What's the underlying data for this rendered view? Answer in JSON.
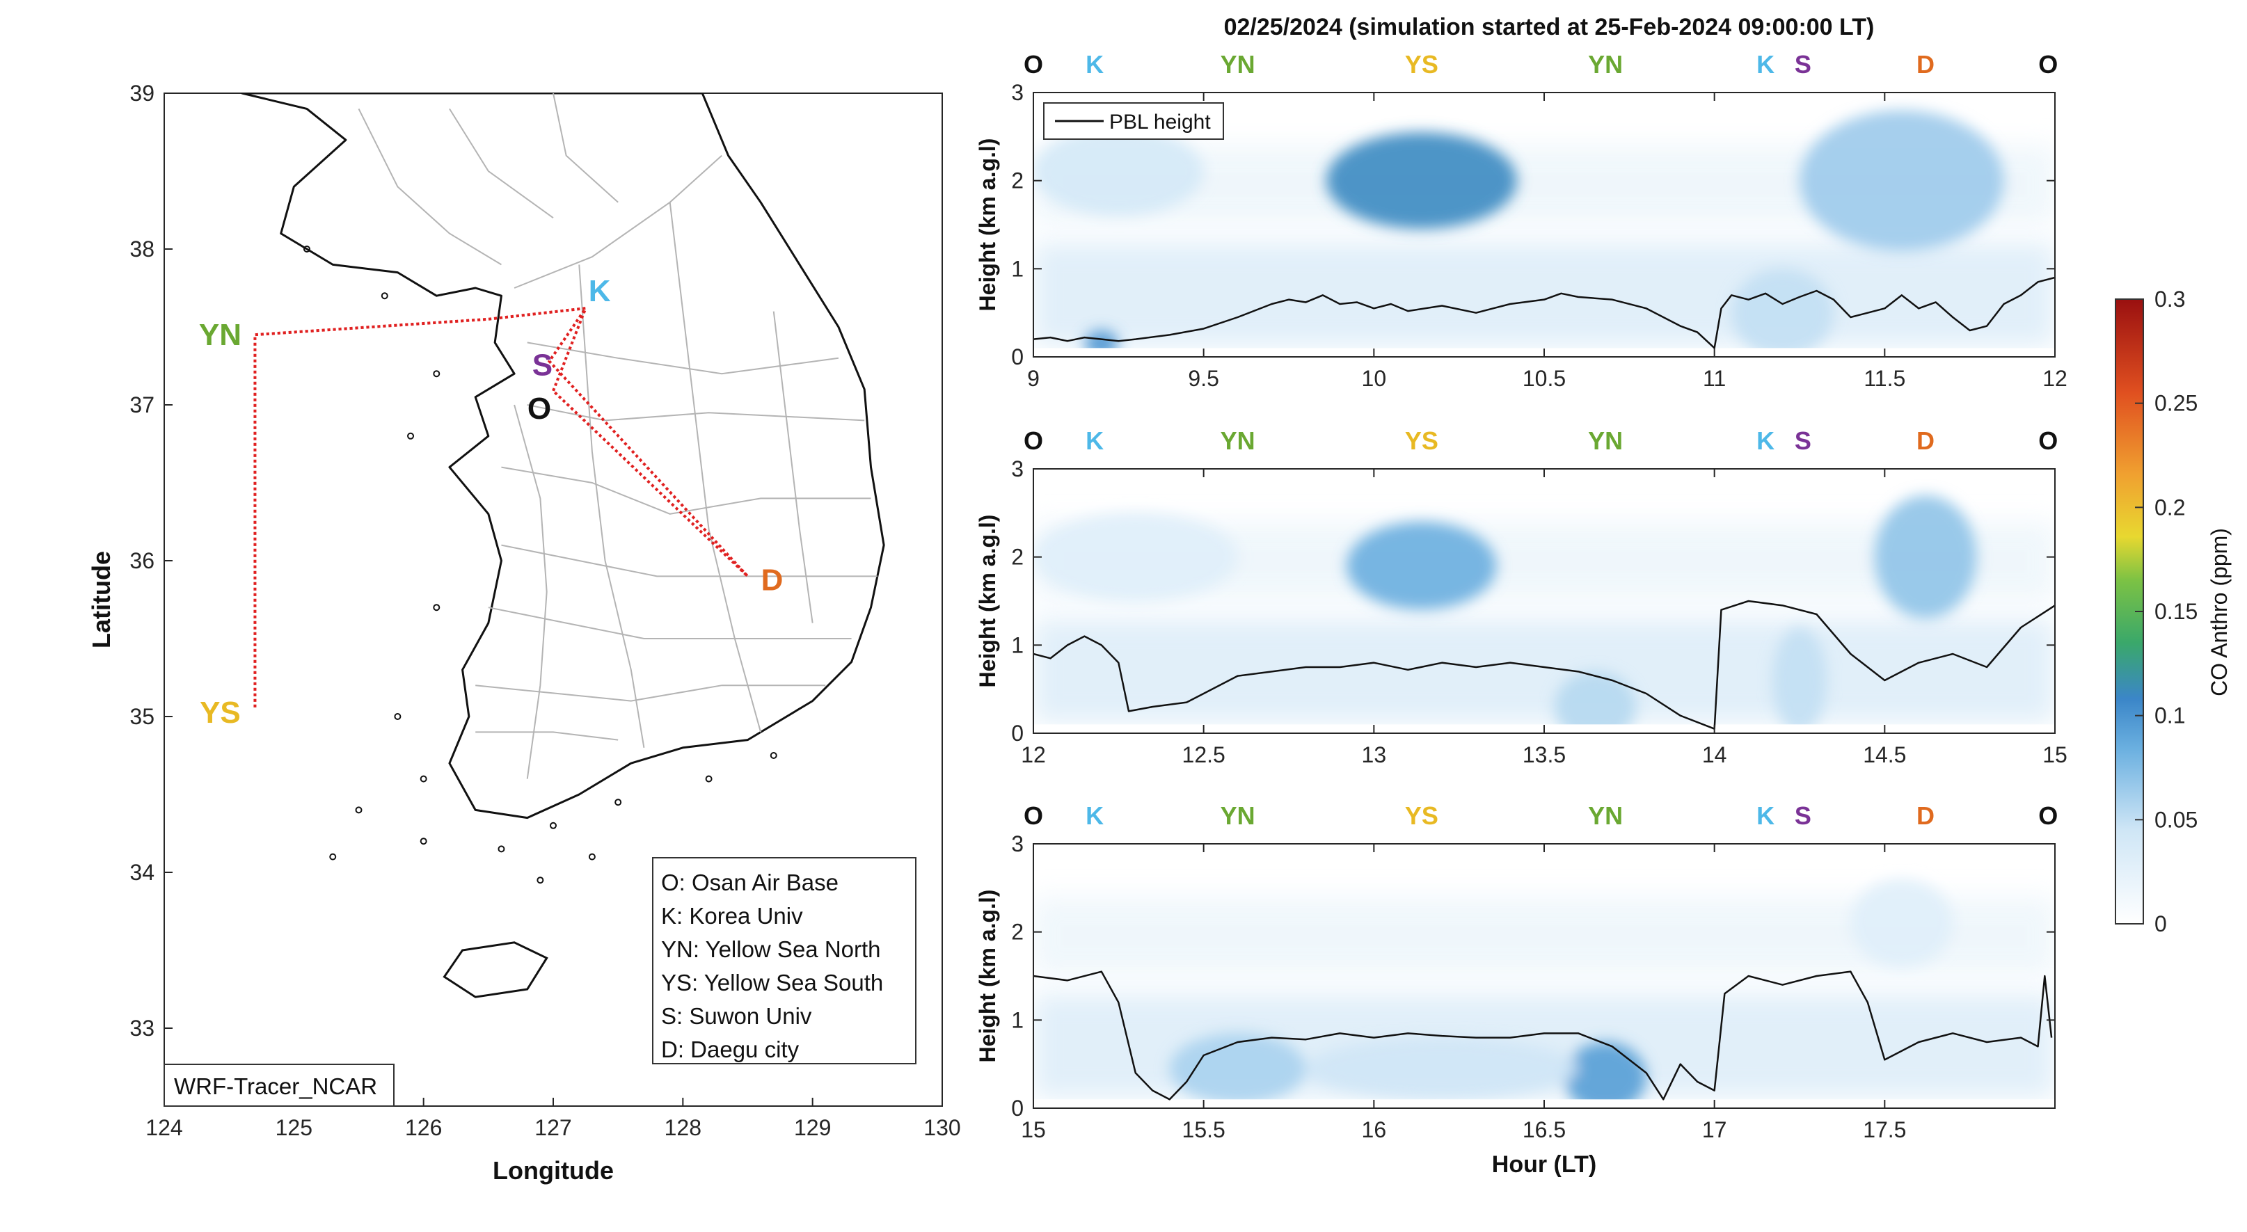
{
  "figure": {
    "title": "02/25/2024 (simulation started at 25-Feb-2024 09:00:00 LT)",
    "watermark_label": "WRF-Tracer_NCAR",
    "colors": {
      "O": "#111111",
      "K": "#4db8e8",
      "YN": "#6aa832",
      "YS": "#e8b923",
      "S": "#7a3296",
      "D": "#e06a1e",
      "path": "#e02020",
      "pbl": "#111111",
      "map_boundary": "#b4b4b4",
      "coast": "#111111"
    }
  },
  "chart_data": [
    {
      "type": "map",
      "xlabel": "Longitude",
      "ylabel": "Latitude",
      "xlim": [
        124,
        130
      ],
      "ylim": [
        32.5,
        39
      ],
      "xticks": [
        124,
        125,
        126,
        127,
        128,
        129,
        130
      ],
      "yticks": [
        33,
        34,
        35,
        36,
        37,
        38,
        39
      ],
      "sites": [
        {
          "code": "K",
          "lon": 127.25,
          "lat": 37.62
        },
        {
          "code": "S",
          "lon": 126.97,
          "lat": 37.28
        },
        {
          "code": "O",
          "lon": 127.0,
          "lat": 37.09
        },
        {
          "code": "D",
          "lon": 128.5,
          "lat": 35.9
        },
        {
          "code": "YN",
          "lon": 124.7,
          "lat": 37.45
        },
        {
          "code": "YS",
          "lon": 124.7,
          "lat": 35.05
        }
      ],
      "flight_path": [
        {
          "lon": 127.0,
          "lat": 37.09
        },
        {
          "lon": 127.25,
          "lat": 37.62
        },
        {
          "lon": 126.5,
          "lat": 37.55
        },
        {
          "lon": 124.7,
          "lat": 37.45
        },
        {
          "lon": 124.7,
          "lat": 35.05
        },
        {
          "lon": 124.7,
          "lat": 37.45
        },
        {
          "lon": 126.5,
          "lat": 37.55
        },
        {
          "lon": 127.25,
          "lat": 37.62
        },
        {
          "lon": 126.97,
          "lat": 37.28
        },
        {
          "lon": 128.5,
          "lat": 35.9
        },
        {
          "lon": 127.0,
          "lat": 37.09
        }
      ],
      "legend": [
        "O: Osan Air Base",
        "K: Korea Univ",
        "YN: Yellow Sea North",
        "YS: Yellow Sea South",
        "S: Suwon Univ",
        "D: Daegu city"
      ]
    },
    {
      "type": "heatmap",
      "ylabel": "Height (km a.g.l)",
      "xlabel": "",
      "xlim": [
        9,
        12
      ],
      "ylim": [
        0,
        3
      ],
      "xticks": [
        "9",
        "9.5",
        "10",
        "10.5",
        "11",
        "11.5",
        "12"
      ],
      "yticks": [
        "0",
        "1",
        "2",
        "3"
      ],
      "legend": "PBL height",
      "site_labels": [
        {
          "code": "O",
          "t": 9.0
        },
        {
          "code": "K",
          "t": 9.18
        },
        {
          "code": "YN",
          "t": 9.6
        },
        {
          "code": "YS",
          "t": 10.14
        },
        {
          "code": "YN",
          "t": 10.68
        },
        {
          "code": "K",
          "t": 11.15
        },
        {
          "code": "S",
          "t": 11.26
        },
        {
          "code": "D",
          "t": 11.62
        },
        {
          "code": "O",
          "t": 11.98
        }
      ],
      "pbl": [
        [
          9.0,
          0.2
        ],
        [
          9.05,
          0.22
        ],
        [
          9.1,
          0.18
        ],
        [
          9.15,
          0.22
        ],
        [
          9.2,
          0.2
        ],
        [
          9.25,
          0.18
        ],
        [
          9.3,
          0.2
        ],
        [
          9.4,
          0.25
        ],
        [
          9.5,
          0.32
        ],
        [
          9.6,
          0.45
        ],
        [
          9.7,
          0.6
        ],
        [
          9.75,
          0.65
        ],
        [
          9.8,
          0.62
        ],
        [
          9.85,
          0.7
        ],
        [
          9.9,
          0.6
        ],
        [
          9.95,
          0.62
        ],
        [
          10.0,
          0.55
        ],
        [
          10.05,
          0.6
        ],
        [
          10.1,
          0.52
        ],
        [
          10.2,
          0.58
        ],
        [
          10.3,
          0.5
        ],
        [
          10.35,
          0.55
        ],
        [
          10.4,
          0.6
        ],
        [
          10.5,
          0.65
        ],
        [
          10.55,
          0.72
        ],
        [
          10.6,
          0.68
        ],
        [
          10.7,
          0.65
        ],
        [
          10.8,
          0.55
        ],
        [
          10.9,
          0.35
        ],
        [
          10.95,
          0.28
        ],
        [
          11.0,
          0.1
        ],
        [
          11.02,
          0.55
        ],
        [
          11.05,
          0.7
        ],
        [
          11.1,
          0.65
        ],
        [
          11.15,
          0.72
        ],
        [
          11.2,
          0.6
        ],
        [
          11.25,
          0.68
        ],
        [
          11.3,
          0.75
        ],
        [
          11.35,
          0.65
        ],
        [
          11.4,
          0.45
        ],
        [
          11.45,
          0.5
        ],
        [
          11.5,
          0.55
        ],
        [
          11.55,
          0.7
        ],
        [
          11.6,
          0.55
        ],
        [
          11.65,
          0.62
        ],
        [
          11.7,
          0.45
        ],
        [
          11.75,
          0.3
        ],
        [
          11.8,
          0.35
        ],
        [
          11.85,
          0.6
        ],
        [
          11.9,
          0.7
        ],
        [
          11.95,
          0.85
        ],
        [
          12.0,
          0.9
        ]
      ],
      "plumes": [
        {
          "t": 10.14,
          "z": 2.0,
          "dt": 0.28,
          "dz": 0.55,
          "v": 0.11
        },
        {
          "t": 9.2,
          "z": 0.15,
          "dt": 0.05,
          "dz": 0.15,
          "v": 0.1
        },
        {
          "t": 11.55,
          "z": 2.0,
          "dt": 0.3,
          "dz": 0.8,
          "v": 0.065
        },
        {
          "t": 11.2,
          "z": 0.5,
          "dt": 0.15,
          "dz": 0.5,
          "v": 0.05
        },
        {
          "t": 9.25,
          "z": 2.1,
          "dt": 0.25,
          "dz": 0.5,
          "v": 0.04
        }
      ]
    },
    {
      "type": "heatmap",
      "ylabel": "Height (km a.g.l)",
      "xlabel": "",
      "xlim": [
        12,
        15
      ],
      "ylim": [
        0,
        3
      ],
      "xticks": [
        "12",
        "12.5",
        "13",
        "13.5",
        "14",
        "14.5",
        "15"
      ],
      "yticks": [
        "0",
        "1",
        "2",
        "3"
      ],
      "site_labels": [
        {
          "code": "O",
          "t": 12.0
        },
        {
          "code": "K",
          "t": 12.18
        },
        {
          "code": "YN",
          "t": 12.6
        },
        {
          "code": "YS",
          "t": 13.14
        },
        {
          "code": "YN",
          "t": 13.68
        },
        {
          "code": "K",
          "t": 14.15
        },
        {
          "code": "S",
          "t": 14.26
        },
        {
          "code": "D",
          "t": 14.62
        },
        {
          "code": "O",
          "t": 14.98
        }
      ],
      "pbl": [
        [
          12.0,
          0.9
        ],
        [
          12.05,
          0.85
        ],
        [
          12.1,
          1.0
        ],
        [
          12.15,
          1.1
        ],
        [
          12.2,
          1.0
        ],
        [
          12.25,
          0.8
        ],
        [
          12.28,
          0.25
        ],
        [
          12.35,
          0.3
        ],
        [
          12.45,
          0.35
        ],
        [
          12.5,
          0.45
        ],
        [
          12.6,
          0.65
        ],
        [
          12.7,
          0.7
        ],
        [
          12.8,
          0.75
        ],
        [
          12.9,
          0.75
        ],
        [
          13.0,
          0.8
        ],
        [
          13.1,
          0.72
        ],
        [
          13.2,
          0.8
        ],
        [
          13.3,
          0.75
        ],
        [
          13.4,
          0.8
        ],
        [
          13.5,
          0.75
        ],
        [
          13.6,
          0.7
        ],
        [
          13.7,
          0.6
        ],
        [
          13.8,
          0.45
        ],
        [
          13.9,
          0.2
        ],
        [
          14.0,
          0.05
        ],
        [
          14.02,
          1.4
        ],
        [
          14.1,
          1.5
        ],
        [
          14.2,
          1.45
        ],
        [
          14.3,
          1.35
        ],
        [
          14.4,
          0.9
        ],
        [
          14.5,
          0.6
        ],
        [
          14.6,
          0.8
        ],
        [
          14.7,
          0.9
        ],
        [
          14.8,
          0.75
        ],
        [
          14.9,
          1.2
        ],
        [
          15.0,
          1.45
        ]
      ],
      "plumes": [
        {
          "t": 13.14,
          "z": 1.9,
          "dt": 0.22,
          "dz": 0.5,
          "v": 0.085
        },
        {
          "t": 14.62,
          "z": 2.0,
          "dt": 0.15,
          "dz": 0.7,
          "v": 0.07
        },
        {
          "t": 13.65,
          "z": 0.3,
          "dt": 0.12,
          "dz": 0.4,
          "v": 0.055
        },
        {
          "t": 14.25,
          "z": 0.6,
          "dt": 0.08,
          "dz": 0.6,
          "v": 0.05
        },
        {
          "t": 12.3,
          "z": 2.0,
          "dt": 0.3,
          "dz": 0.5,
          "v": 0.03
        }
      ]
    },
    {
      "type": "heatmap",
      "ylabel": "Height (km a.g.l)",
      "xlabel": "Hour (LT)",
      "xlim": [
        15,
        18
      ],
      "ylim": [
        0,
        3
      ],
      "xticks": [
        "15",
        "15.5",
        "16",
        "16.5",
        "17",
        "17.5"
      ],
      "yticks": [
        "0",
        "1",
        "2",
        "3"
      ],
      "site_labels": [
        {
          "code": "O",
          "t": 15.0
        },
        {
          "code": "K",
          "t": 15.18
        },
        {
          "code": "YN",
          "t": 15.6
        },
        {
          "code": "YS",
          "t": 16.14
        },
        {
          "code": "YN",
          "t": 16.68
        },
        {
          "code": "K",
          "t": 17.15
        },
        {
          "code": "S",
          "t": 17.26
        },
        {
          "code": "D",
          "t": 17.62
        },
        {
          "code": "O",
          "t": 17.98
        }
      ],
      "pbl": [
        [
          15.0,
          1.5
        ],
        [
          15.1,
          1.45
        ],
        [
          15.2,
          1.55
        ],
        [
          15.25,
          1.2
        ],
        [
          15.3,
          0.4
        ],
        [
          15.35,
          0.2
        ],
        [
          15.4,
          0.1
        ],
        [
          15.45,
          0.3
        ],
        [
          15.5,
          0.6
        ],
        [
          15.6,
          0.75
        ],
        [
          15.7,
          0.8
        ],
        [
          15.8,
          0.78
        ],
        [
          15.9,
          0.85
        ],
        [
          16.0,
          0.8
        ],
        [
          16.1,
          0.85
        ],
        [
          16.2,
          0.82
        ],
        [
          16.3,
          0.8
        ],
        [
          16.4,
          0.8
        ],
        [
          16.5,
          0.85
        ],
        [
          16.6,
          0.85
        ],
        [
          16.7,
          0.7
        ],
        [
          16.8,
          0.4
        ],
        [
          16.85,
          0.1
        ],
        [
          16.9,
          0.5
        ],
        [
          16.95,
          0.3
        ],
        [
          17.0,
          0.2
        ],
        [
          17.03,
          1.3
        ],
        [
          17.1,
          1.5
        ],
        [
          17.2,
          1.4
        ],
        [
          17.3,
          1.5
        ],
        [
          17.4,
          1.55
        ],
        [
          17.45,
          1.2
        ],
        [
          17.5,
          0.55
        ],
        [
          17.6,
          0.75
        ],
        [
          17.7,
          0.85
        ],
        [
          17.8,
          0.75
        ],
        [
          17.9,
          0.8
        ],
        [
          17.95,
          0.7
        ],
        [
          17.97,
          1.5
        ],
        [
          17.99,
          0.8
        ]
      ],
      "plumes": [
        {
          "t": 16.68,
          "z": 0.35,
          "dt": 0.12,
          "dz": 0.4,
          "v": 0.095
        },
        {
          "t": 15.6,
          "z": 0.45,
          "dt": 0.2,
          "dz": 0.4,
          "v": 0.06
        },
        {
          "t": 16.2,
          "z": 0.45,
          "dt": 0.4,
          "dz": 0.35,
          "v": 0.045
        },
        {
          "t": 17.55,
          "z": 2.1,
          "dt": 0.15,
          "dz": 0.5,
          "v": 0.03
        }
      ]
    }
  ],
  "colorbar": {
    "label": "CO Anthro (ppm)",
    "ticks": [
      "0",
      "0.05",
      "0.1",
      "0.15",
      "0.2",
      "0.25",
      "0.3"
    ],
    "range": [
      0,
      0.3
    ]
  }
}
